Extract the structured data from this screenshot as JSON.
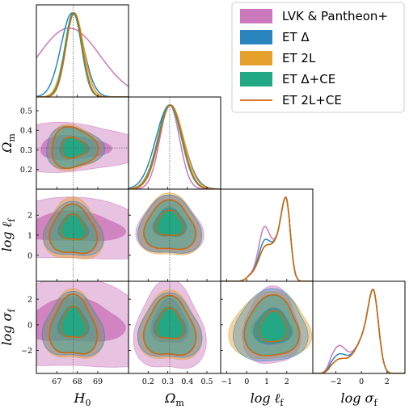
{
  "chart_data": {
    "type": "corner",
    "parameters": [
      {
        "key": "H0",
        "label": "H",
        "sub": "0",
        "range": [
          66,
          70.5
        ],
        "ticks": [
          "67",
          "68",
          "69"
        ],
        "tick_values": [
          67,
          68,
          69
        ],
        "fiducial": 67.8
      },
      {
        "key": "Om",
        "label": "Ω",
        "sub": "m",
        "range": [
          0.1,
          0.57
        ],
        "ticks": [
          "0.2",
          "0.3",
          "0.4",
          "0.5"
        ],
        "tick_values": [
          0.2,
          0.3,
          0.4,
          0.5
        ],
        "fiducial": 0.31
      },
      {
        "key": "logl",
        "label": "log ℓ",
        "sub": "f",
        "range": [
          -1.3,
          3.3
        ],
        "ticks": [
          "−1",
          "0",
          "1",
          "2"
        ],
        "tick_values": [
          -1,
          0,
          1,
          2
        ],
        "fiducial": null
      },
      {
        "key": "logs",
        "label": "log σ",
        "sub": "f",
        "range": [
          -3.8,
          3.4
        ],
        "ticks": [
          "−2",
          "0",
          "2"
        ],
        "tick_values": [
          -2,
          0,
          2
        ],
        "fiducial": null
      }
    ],
    "side_ticks": {
      "Om": [
        "0.2",
        "0.3",
        "0.4",
        "0.5"
      ],
      "logl": [
        "0",
        "1",
        "2"
      ],
      "logs": [
        "−2",
        "0",
        "2"
      ]
    },
    "series": [
      {
        "name": "LVK & Pantheon+",
        "color": "#cc78bc",
        "style": "patch"
      },
      {
        "name": "ET Δ",
        "color": "#2a84bd",
        "style": "patch"
      },
      {
        "name": "ET 2L",
        "color": "#e5a02e",
        "style": "patch"
      },
      {
        "name": "ET Δ+CE",
        "color": "#22a884",
        "style": "patch"
      },
      {
        "name": "ET 2L+CE",
        "color": "#d4660e",
        "style": "line"
      }
    ],
    "posteriors": {
      "H0": {
        "LVK & Pantheon+": {
          "mean": 67.6,
          "sd": 1.5
        },
        "ET Δ": {
          "mean": 67.75,
          "sd": 0.55
        },
        "ET 2L": {
          "mean": 67.85,
          "sd": 0.45
        },
        "ET Δ+CE": {
          "mean": 67.8,
          "sd": 0.4
        },
        "ET 2L+CE": {
          "mean": 67.85,
          "sd": 0.4
        }
      },
      "Om": {
        "LVK & Pantheon+": {
          "mean": 0.31,
          "sd": 0.05
        },
        "ET Δ": {
          "mean": 0.31,
          "sd": 0.07
        },
        "ET 2L": {
          "mean": 0.315,
          "sd": 0.065
        },
        "ET Δ+CE": {
          "mean": 0.31,
          "sd": 0.06
        },
        "ET 2L+CE": {
          "mean": 0.315,
          "sd": 0.06
        }
      }
    }
  }
}
